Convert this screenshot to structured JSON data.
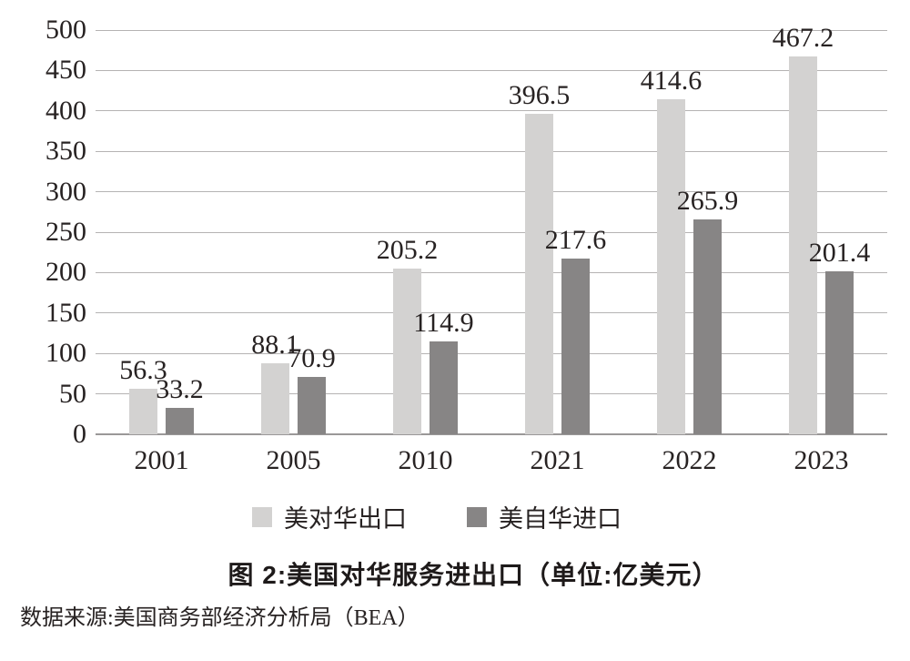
{
  "page": {
    "background": "#ffffff",
    "text_color": "#272222"
  },
  "chart_data": {
    "type": "bar",
    "title": "图 2:美国对华服务进出口（单位:亿美元）",
    "source_note": "数据来源:美国商务部经济分析局（BEA）",
    "categories": [
      "2001",
      "2005",
      "2010",
      "2021",
      "2022",
      "2023"
    ],
    "series": [
      {
        "name": "美对华出口",
        "color": "#d3d2d1",
        "values": [
          56.3,
          88.1,
          205.2,
          396.5,
          414.6,
          467.2
        ]
      },
      {
        "name": "美自华进口",
        "color": "#878585",
        "values": [
          33.2,
          70.9,
          114.9,
          217.6,
          265.9,
          201.4
        ]
      }
    ],
    "ylim": [
      0,
      500
    ],
    "yticks": [
      0,
      50,
      100,
      150,
      200,
      250,
      300,
      350,
      400,
      450,
      500
    ],
    "grid": true,
    "gridline_color": "#b5b3b3",
    "axis_line_color": "#9a9898",
    "legend_position": "bottom",
    "value_labels": true
  }
}
